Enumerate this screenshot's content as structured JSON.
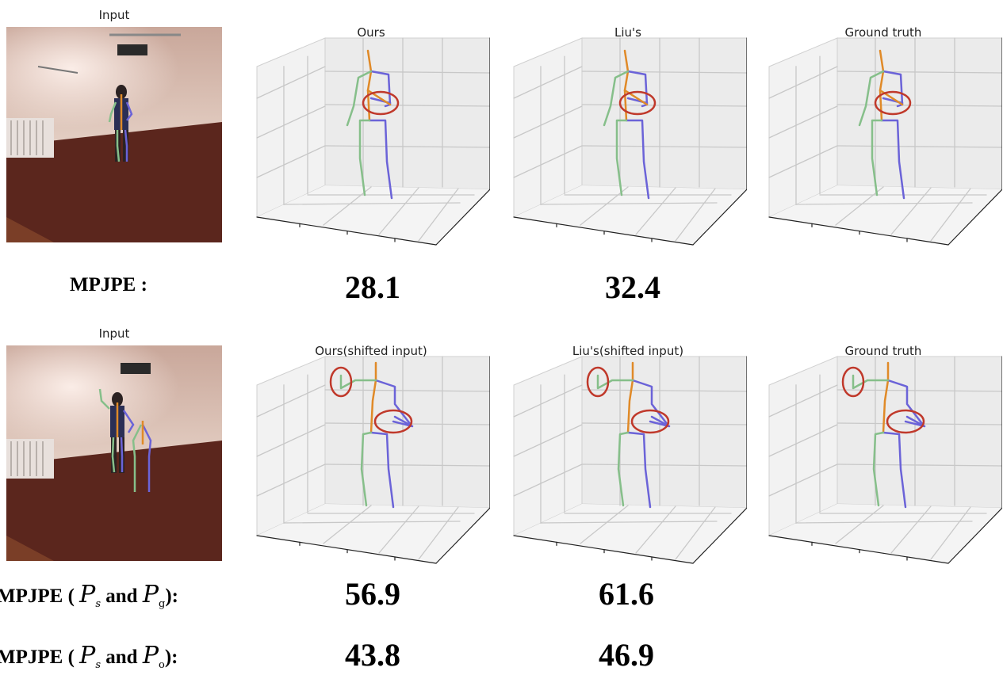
{
  "row1": {
    "input_title": "Input",
    "panels": [
      {
        "title": "Ours"
      },
      {
        "title": "Liu's"
      },
      {
        "title": "Ground truth"
      }
    ],
    "metric_label": "MPJPE :",
    "ours_value": "28.1",
    "liu_value": "32.4"
  },
  "row2": {
    "input_title": "Input",
    "panels": [
      {
        "title": "Ours(shifted input)"
      },
      {
        "title": "Liu's(shifted input)"
      },
      {
        "title": "Ground truth"
      }
    ],
    "metric1": {
      "prefix": "MPJPE (",
      "sym1": "P",
      "sub1": "s",
      "mid": "and",
      "sym2": "P",
      "sub2": "g",
      "suffix": "):"
    },
    "metric1_ours": "56.9",
    "metric1_liu": "61.6",
    "metric2": {
      "prefix": "MPJPE (",
      "sym1": "P",
      "sub1": "s",
      "mid": "and",
      "sym2": "P",
      "sub2": "o",
      "suffix": "):"
    },
    "metric2_ours": "43.8",
    "metric2_liu": "46.9"
  },
  "colors": {
    "left_limb": "#86bf8a",
    "right_limb": "#6b63d8",
    "spine": "#e08a28",
    "highlight": "#c0392b",
    "grid": "#c8c8c8"
  }
}
